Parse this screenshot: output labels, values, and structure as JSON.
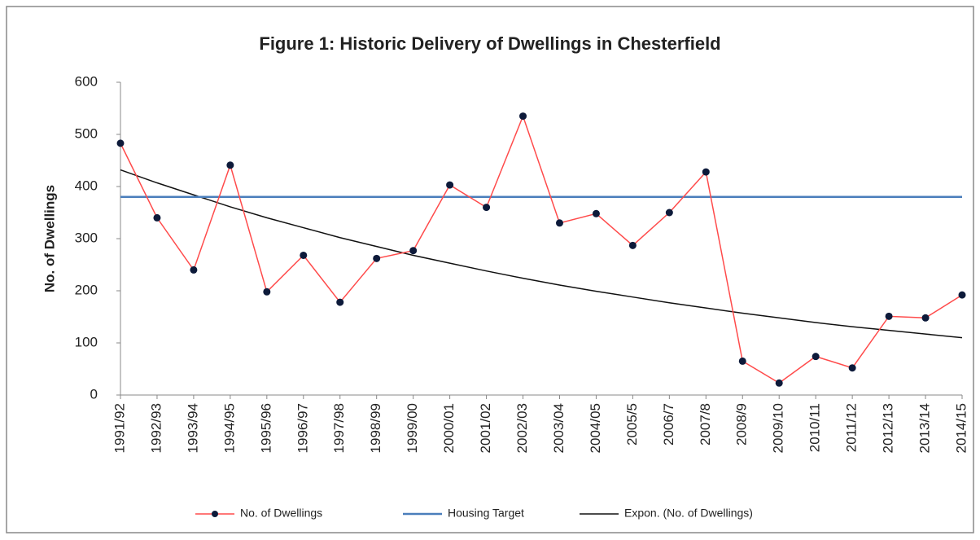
{
  "chart_data": {
    "type": "line",
    "title": "Figure 1: Historic Delivery of Dwellings in Chesterfield",
    "y_label": "No. of Dwellings",
    "categories": [
      "1991/92",
      "1992/93",
      "1993/94",
      "1994/95",
      "1995/96",
      "1996/97",
      "1997/98",
      "1998/99",
      "1999/00",
      "2000/01",
      "2001/02",
      "2002/03",
      "2003/04",
      "2004/05",
      "2005/5",
      "2006/7",
      "2007/8",
      "2008/9",
      "2009/10",
      "2010/11",
      "2011/12",
      "2012/13",
      "2013/14",
      "2014/15"
    ],
    "series": [
      {
        "name": "No. of Dwellings",
        "color": "#ff4b4b",
        "marker_color": "#0d1a3a",
        "values": [
          483,
          340,
          240,
          441,
          198,
          268,
          178,
          262,
          277,
          403,
          360,
          535,
          330,
          348,
          287,
          350,
          428,
          65,
          23,
          74,
          52,
          151,
          148,
          192
        ]
      },
      {
        "name": "Housing Target",
        "color": "#4a7ebb",
        "values": [
          380,
          380,
          380,
          380,
          380,
          380,
          380,
          380,
          380,
          380,
          380,
          380,
          380,
          380,
          380,
          380,
          380,
          380,
          380,
          380,
          380,
          380,
          380,
          380
        ]
      },
      {
        "name": "Expon. (No. of Dwellings)",
        "color": "#111111",
        "values": [
          432,
          407,
          384,
          361,
          340,
          321,
          302,
          285,
          268,
          253,
          238,
          224,
          211,
          199,
          188,
          177,
          167,
          157,
          148,
          139,
          131,
          124,
          117,
          110
        ]
      }
    ],
    "ylim": [
      0,
      600
    ],
    "yticks": [
      0,
      100,
      200,
      300,
      400,
      500,
      600
    ],
    "legend": "bottom"
  }
}
